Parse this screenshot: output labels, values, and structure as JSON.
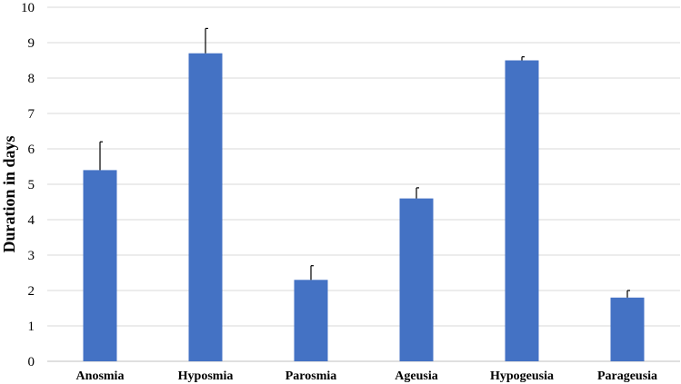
{
  "chart_data": {
    "type": "bar",
    "title": "",
    "xlabel": "",
    "ylabel": "Duration in days",
    "categories": [
      "Anosmia",
      "Hyposmia",
      "Parosmia",
      "Ageusia",
      "Hypogeusia",
      "Parageusia"
    ],
    "values": [
      5.4,
      8.7,
      2.3,
      4.6,
      8.5,
      1.8
    ],
    "error_plus": [
      0.8,
      0.7,
      0.4,
      0.3,
      0.1,
      0.2
    ],
    "ylim": [
      0,
      10
    ],
    "yticks": [
      "0",
      "1",
      "2",
      "3",
      "4",
      "5",
      "6",
      "7",
      "8",
      "9",
      "10"
    ],
    "grid": true,
    "legend": "none",
    "bar_color": "#4472C4"
  }
}
